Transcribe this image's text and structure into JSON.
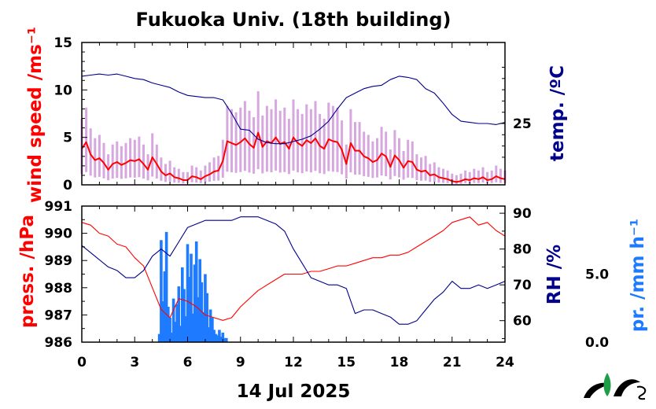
{
  "chart_data": [
    {
      "type": "line",
      "title": "Fukuoka Univ. (18th building)",
      "x_ticks": [
        "0",
        "3",
        "6",
        "9",
        "12",
        "15",
        "18",
        "21",
        "24"
      ],
      "xlim": [
        0,
        24
      ],
      "left_axis": {
        "label": "wind speed /ms⁻¹",
        "ylim": [
          0,
          15
        ],
        "ticks": [
          "0",
          "5",
          "10",
          "15"
        ],
        "color": "#ff0000"
      },
      "right_axis": {
        "label": "temp. /ºC",
        "ticks": [
          "25"
        ],
        "color": "#00008b"
      },
      "series": [
        {
          "name": "wind speed",
          "color": "#ff0000",
          "x": [
            0,
            0.25,
            0.5,
            0.75,
            1,
            1.25,
            1.5,
            1.75,
            2,
            2.25,
            2.5,
            2.75,
            3,
            3.25,
            3.5,
            3.75,
            4,
            4.25,
            4.5,
            4.75,
            5,
            5.25,
            5.5,
            5.75,
            6,
            6.25,
            6.5,
            6.75,
            7,
            7.25,
            7.5,
            7.75,
            8,
            8.25,
            8.5,
            8.75,
            9,
            9.25,
            9.5,
            9.75,
            10,
            10.25,
            10.5,
            10.75,
            11,
            11.25,
            11.5,
            11.75,
            12,
            12.25,
            12.5,
            12.75,
            13,
            13.25,
            13.5,
            13.75,
            14,
            14.25,
            14.5,
            14.75,
            15,
            15.25,
            15.5,
            15.75,
            16,
            16.25,
            16.5,
            16.75,
            17,
            17.25,
            17.5,
            17.75,
            18,
            18.25,
            18.5,
            18.75,
            19,
            19.25,
            19.5,
            19.75,
            20,
            20.25,
            20.5,
            20.75,
            21,
            21.25,
            21.5,
            21.75,
            22,
            22.25,
            22.5,
            22.75,
            23,
            23.25,
            23.5,
            23.75,
            24
          ],
          "y": [
            3.8,
            4.5,
            3.2,
            2.6,
            2.8,
            2.3,
            1.6,
            2.2,
            2.4,
            2.1,
            2.3,
            2.6,
            2.5,
            2.7,
            2.2,
            1.6,
            2.9,
            2.2,
            1.4,
            1.0,
            1.2,
            0.8,
            0.7,
            0.5,
            0.5,
            0.9,
            0.8,
            0.6,
            0.9,
            1.1,
            1.4,
            1.5,
            2.5,
            4.6,
            4.4,
            4.2,
            4.5,
            4.9,
            4.3,
            3.9,
            5.5,
            4.0,
            4.6,
            4.4,
            5.0,
            4.3,
            4.5,
            3.8,
            5.0,
            4.4,
            4.1,
            4.7,
            4.4,
            4.9,
            4.1,
            3.8,
            4.8,
            4.6,
            4.5,
            3.7,
            2.2,
            4.4,
            3.6,
            3.6,
            3.0,
            2.8,
            2.4,
            2.6,
            3.3,
            3.0,
            1.9,
            3.1,
            2.6,
            1.8,
            2.5,
            2.4,
            1.6,
            1.4,
            1.5,
            1.0,
            1.1,
            0.8,
            0.7,
            0.6,
            0.4,
            0.3,
            0.4,
            0.6,
            0.5,
            0.7,
            0.6,
            0.8,
            0.5,
            0.6,
            0.9,
            0.7,
            0.6
          ]
        },
        {
          "name": "temp.",
          "color": "#00008b",
          "x": [
            0,
            0.5,
            1,
            1.5,
            2,
            2.5,
            3,
            3.5,
            4,
            4.5,
            5,
            5.5,
            6,
            6.5,
            7,
            7.5,
            8,
            8.5,
            9,
            9.5,
            10,
            10.5,
            11,
            11.5,
            12,
            12.5,
            13,
            13.5,
            14,
            14.5,
            15,
            15.5,
            16,
            16.5,
            17,
            17.5,
            18,
            18.5,
            19,
            19.5,
            20,
            20.5,
            21,
            21.5,
            22,
            22.5,
            23,
            23.5,
            24
          ],
          "y": [
            29.2,
            29.3,
            29.4,
            29.3,
            29.4,
            29.2,
            29.0,
            28.9,
            28.6,
            28.4,
            28.2,
            27.8,
            27.5,
            27.4,
            27.3,
            27.3,
            27.1,
            25.9,
            24.5,
            24.4,
            23.6,
            23.3,
            23.2,
            23.2,
            23.4,
            23.6,
            23.9,
            24.5,
            25.2,
            26.3,
            27.3,
            27.7,
            28.1,
            28.3,
            28.4,
            28.9,
            29.2,
            29.1,
            28.9,
            28.1,
            27.7,
            26.8,
            25.8,
            25.2,
            25.1,
            25.0,
            25.0,
            24.9,
            25.1
          ]
        }
      ]
    },
    {
      "type": "line",
      "xlabel": "14 Jul 2025",
      "x_ticks": [
        "0",
        "3",
        "6",
        "9",
        "12",
        "15",
        "18",
        "21",
        "24"
      ],
      "xlim": [
        0,
        24
      ],
      "left_axis": {
        "label": "press. /hPa",
        "ylim": [
          986,
          991
        ],
        "ticks": [
          "986",
          "987",
          "988",
          "989",
          "990",
          "991"
        ],
        "color": "#ff0000"
      },
      "right_axis": {
        "label": "RH /%",
        "ylim": [
          54,
          92
        ],
        "ticks": [
          "60",
          "70",
          "80",
          "90"
        ],
        "color": "#00008b"
      },
      "far_right_axis": {
        "label": "pr. /mm h⁻¹",
        "ylim": [
          0,
          10
        ],
        "ticks": [
          "0.0",
          "5.0"
        ],
        "color": "#1e7bff"
      },
      "series": [
        {
          "name": "press.",
          "color": "#ff0000",
          "x": [
            0,
            0.5,
            1,
            1.5,
            2,
            2.5,
            3,
            3.5,
            4,
            4.5,
            5,
            5.5,
            6,
            6.5,
            7,
            7.5,
            8,
            8.5,
            9,
            9.5,
            10,
            10.5,
            11,
            11.5,
            12,
            12.5,
            13,
            13.5,
            14,
            14.5,
            15,
            15.5,
            16,
            16.5,
            17,
            17.5,
            18,
            18.5,
            19,
            19.5,
            20,
            20.5,
            21,
            21.5,
            22,
            22.5,
            23,
            23.5,
            24
          ],
          "y": [
            990.4,
            990.3,
            990.0,
            989.9,
            989.6,
            989.5,
            989.1,
            988.8,
            988.0,
            987.2,
            986.9,
            987.6,
            987.5,
            987.3,
            987.0,
            986.9,
            986.8,
            986.9,
            987.3,
            987.6,
            987.9,
            988.1,
            988.3,
            988.5,
            988.5,
            988.5,
            988.6,
            988.6,
            988.7,
            988.8,
            988.8,
            988.9,
            989.0,
            989.1,
            989.1,
            989.2,
            989.2,
            989.3,
            989.5,
            989.7,
            989.9,
            990.1,
            990.4,
            990.5,
            990.6,
            990.3,
            990.4,
            990.1,
            989.9
          ]
        },
        {
          "name": "RH",
          "color": "#00008b",
          "x": [
            0,
            0.5,
            1,
            1.5,
            2,
            2.5,
            3,
            3.5,
            4,
            4.5,
            5,
            5.5,
            6,
            6.5,
            7,
            7.5,
            8,
            8.5,
            9,
            9.5,
            10,
            10.5,
            11,
            11.5,
            12,
            12.5,
            13,
            13.5,
            14,
            14.5,
            15,
            15.5,
            16,
            16.5,
            17,
            17.5,
            18,
            18.5,
            19,
            19.5,
            20,
            20.5,
            21,
            21.5,
            22,
            22.5,
            23,
            23.5,
            24
          ],
          "y": [
            81,
            79,
            77,
            75,
            74,
            72,
            72,
            74,
            78,
            80,
            78,
            82,
            86,
            87,
            88,
            88,
            88,
            88,
            89,
            89,
            89,
            88,
            87,
            85,
            80,
            76,
            72,
            71,
            70,
            70,
            69,
            62,
            63,
            63,
            62,
            61,
            59,
            59,
            60,
            63,
            66,
            68,
            71,
            69,
            69,
            70,
            69,
            70,
            71
          ]
        },
        {
          "name": "pr.",
          "color": "#1e7bff",
          "x": [
            4.4,
            4.5,
            4.6,
            4.7,
            4.8,
            4.9,
            5.0,
            5.1,
            5.2,
            5.3,
            5.4,
            5.5,
            5.6,
            5.7,
            5.8,
            5.9,
            6.0,
            6.1,
            6.2,
            6.3,
            6.4,
            6.5,
            6.6,
            6.7,
            6.8,
            6.9,
            7.0,
            7.1,
            7.2,
            7.3,
            7.4,
            7.5,
            7.6,
            7.7,
            7.8,
            7.9,
            8.0,
            8.1,
            8.2
          ],
          "y": [
            0.6,
            7.5,
            3.0,
            5.2,
            8.1,
            2.6,
            1.8,
            0.7,
            3.2,
            1.5,
            2.8,
            4.1,
            1.2,
            5.5,
            3.9,
            1.9,
            7.2,
            4.8,
            6.5,
            2.1,
            5.7,
            7.4,
            3.3,
            6.1,
            4.4,
            2.2,
            5.0,
            3.6,
            1.1,
            2.4,
            1.8,
            0.9,
            0.6,
            0.5,
            0.9,
            0.4,
            0.7,
            0.3,
            0.3
          ]
        }
      ]
    }
  ]
}
